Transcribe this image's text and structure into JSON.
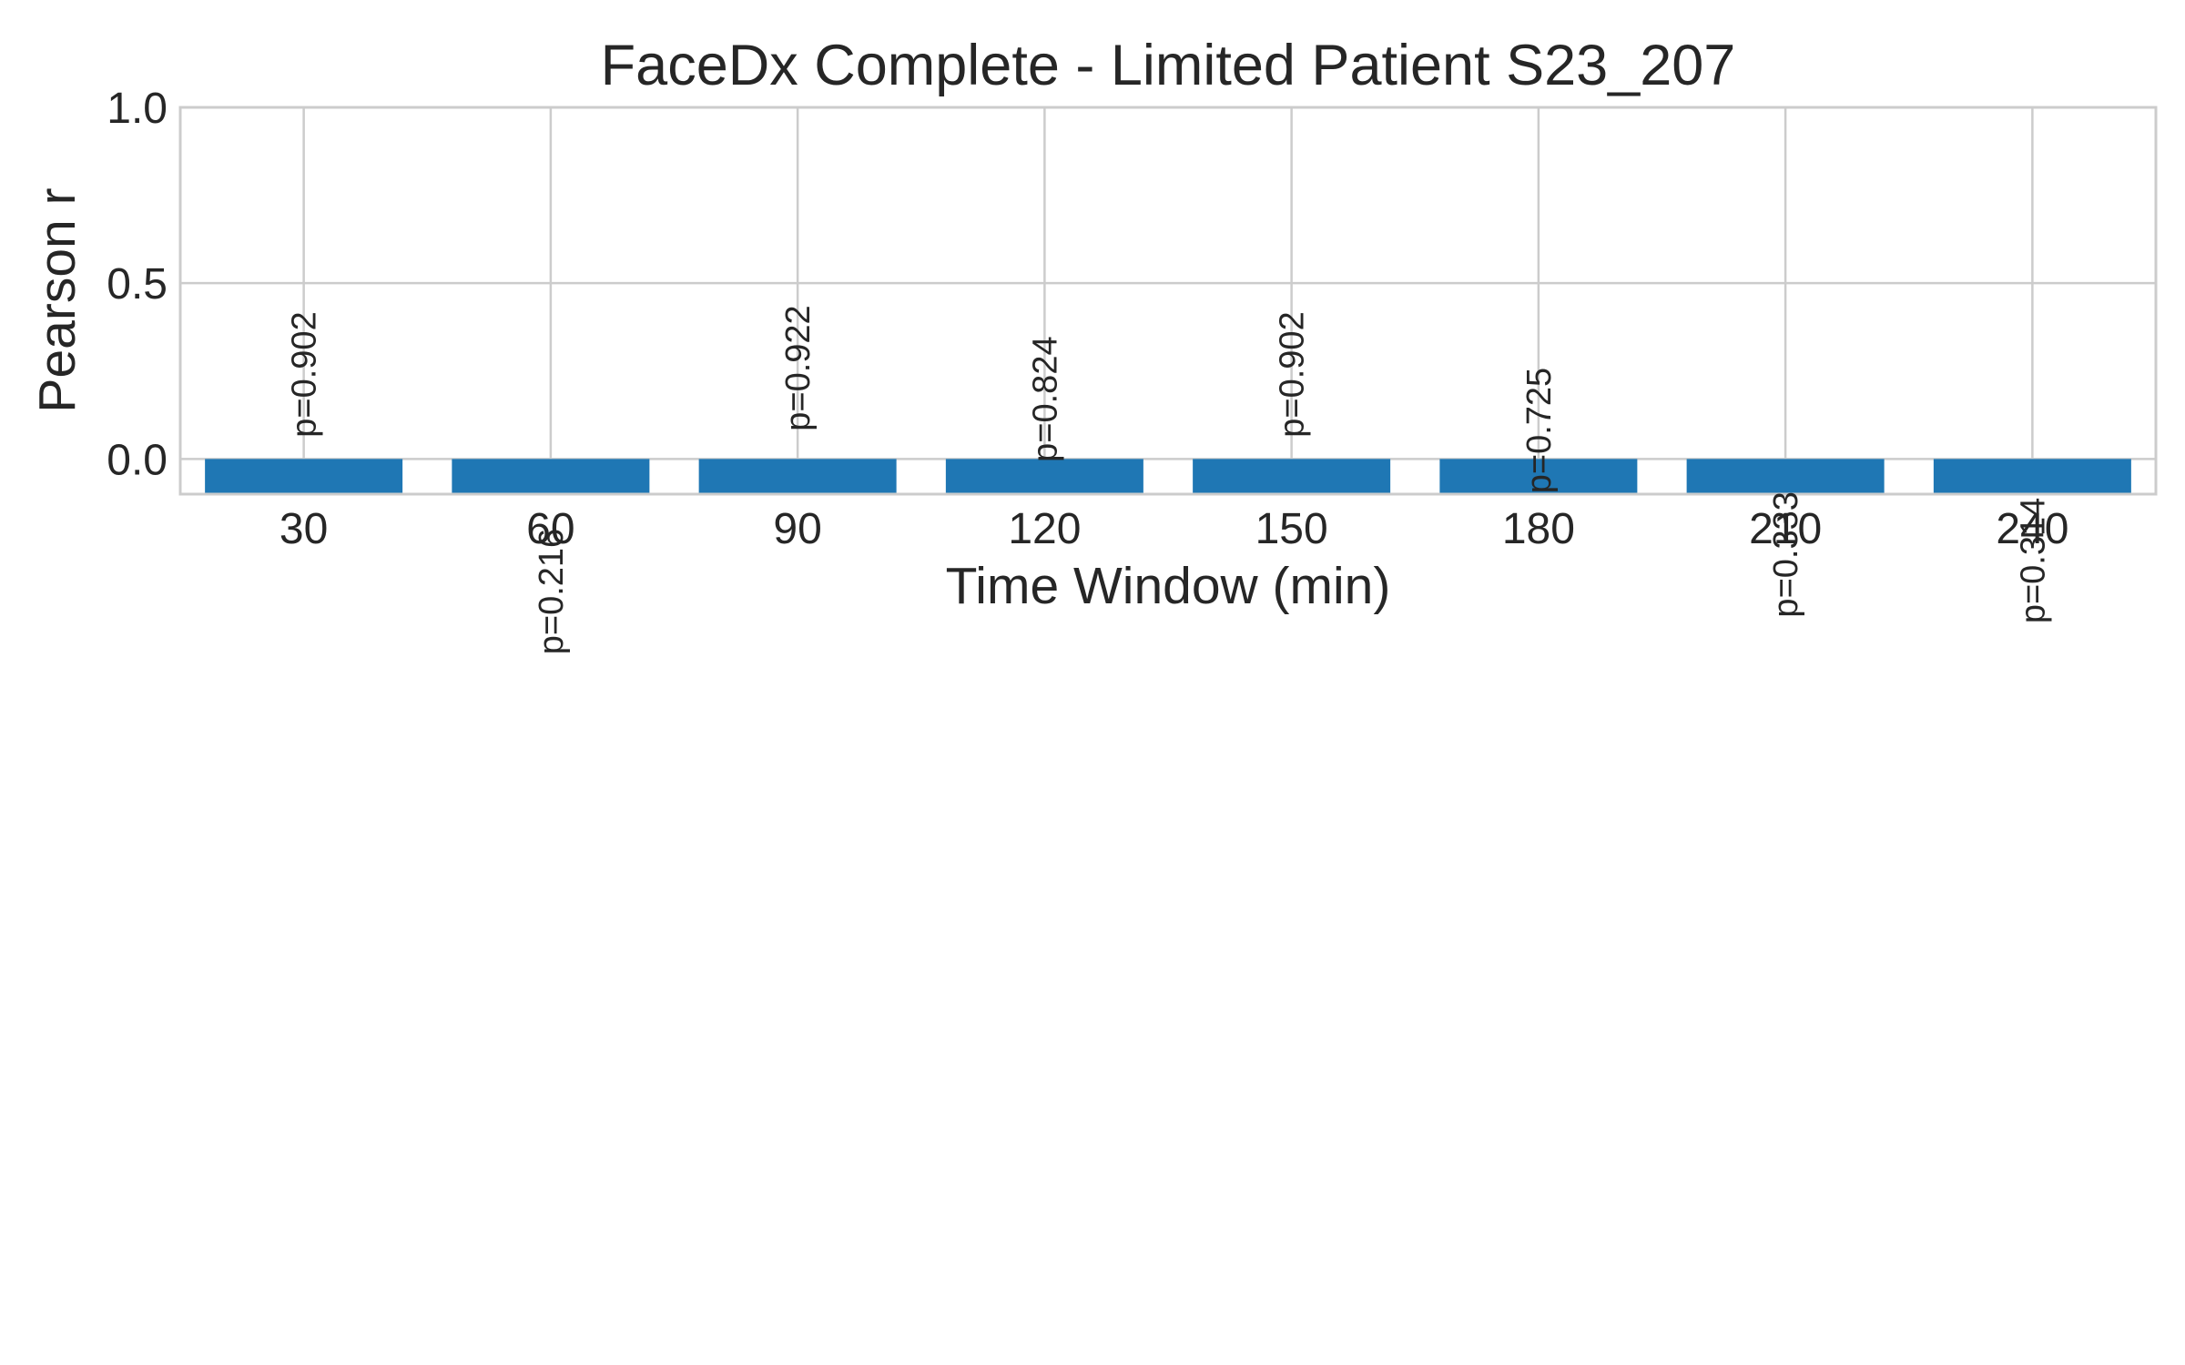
{
  "chart_data": {
    "type": "bar",
    "title": "FaceDx Complete - Limited Patient S23_207",
    "xlabel": "Time Window (min)",
    "ylabel": "Pearson r",
    "categories": [
      "30",
      "60",
      "90",
      "120",
      "150",
      "180",
      "210",
      "240"
    ],
    "values": [
      -0.1,
      -0.1,
      -0.1,
      -0.1,
      -0.1,
      -0.1,
      -0.1,
      -0.1
    ],
    "p_labels": [
      "p=0.902",
      "p=0.216",
      "p=0.922",
      "p=0.824",
      "p=0.902",
      "p=0.725",
      "p=0.333",
      "p=0.314"
    ],
    "p_values": [
      0.902,
      0.216,
      0.922,
      0.824,
      0.902,
      0.725,
      0.333,
      0.314
    ],
    "ylim": [
      -0.1,
      1.0
    ],
    "yticks": [
      "0.0",
      "0.5",
      "1.0"
    ],
    "ytick_values": [
      0.0,
      0.5,
      1.0
    ],
    "grid": true,
    "bar_color": "#1f77b4"
  }
}
